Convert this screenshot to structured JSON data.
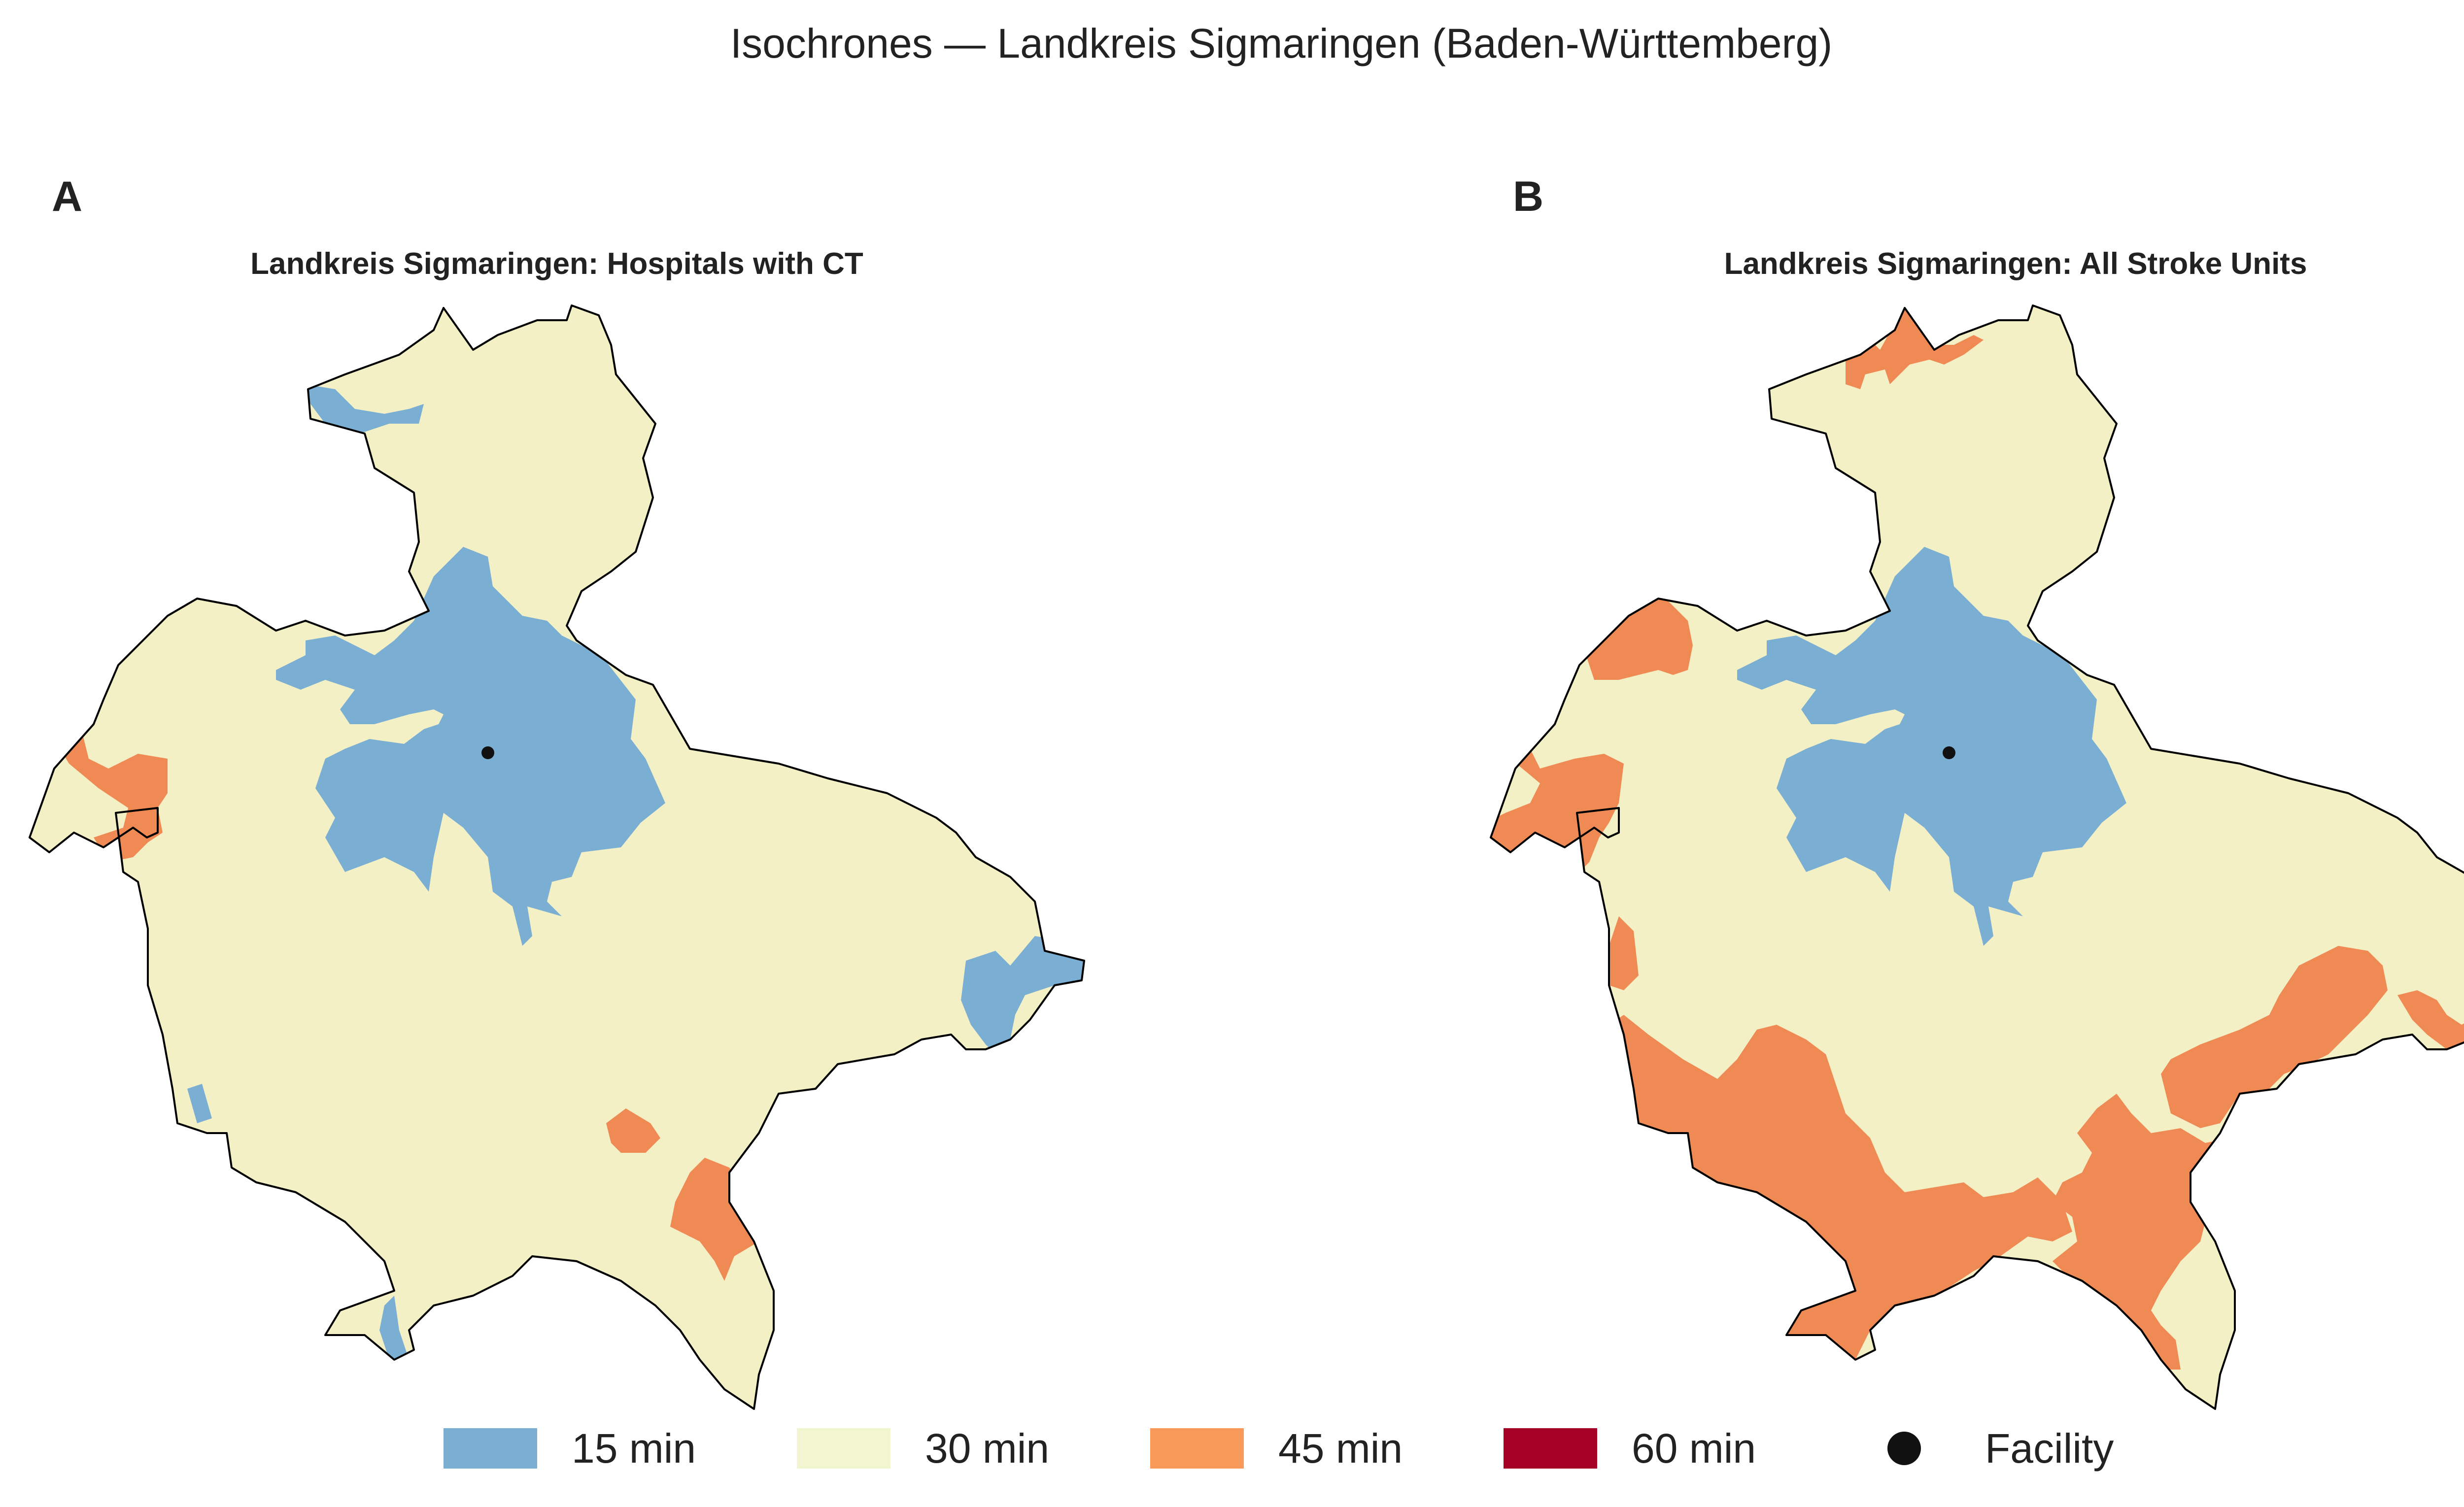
{
  "figure": {
    "title": "Isochrones — Landkreis Sigmaringen (Baden-Württemberg)"
  },
  "colors": {
    "min15": "#7aaed3",
    "min30": "#f4f0c6",
    "min45": "#f08a55",
    "min60": "#a50026",
    "facility": "#111111",
    "border": "#000000"
  },
  "panels": [
    {
      "letter": "A",
      "title": "Landkreis Sigmaringen: Hospitals with CT"
    },
    {
      "letter": "B",
      "title": "Landkreis Sigmaringen: All Stroke Units"
    }
  ],
  "legend": {
    "items": [
      {
        "label": "15 min",
        "color_key": "min15"
      },
      {
        "label": "30 min",
        "color_key": "min30"
      },
      {
        "label": "45 min",
        "color_key": "min45"
      },
      {
        "label": "60 min",
        "color_key": "min60"
      }
    ],
    "facility_label": "Facility"
  }
}
